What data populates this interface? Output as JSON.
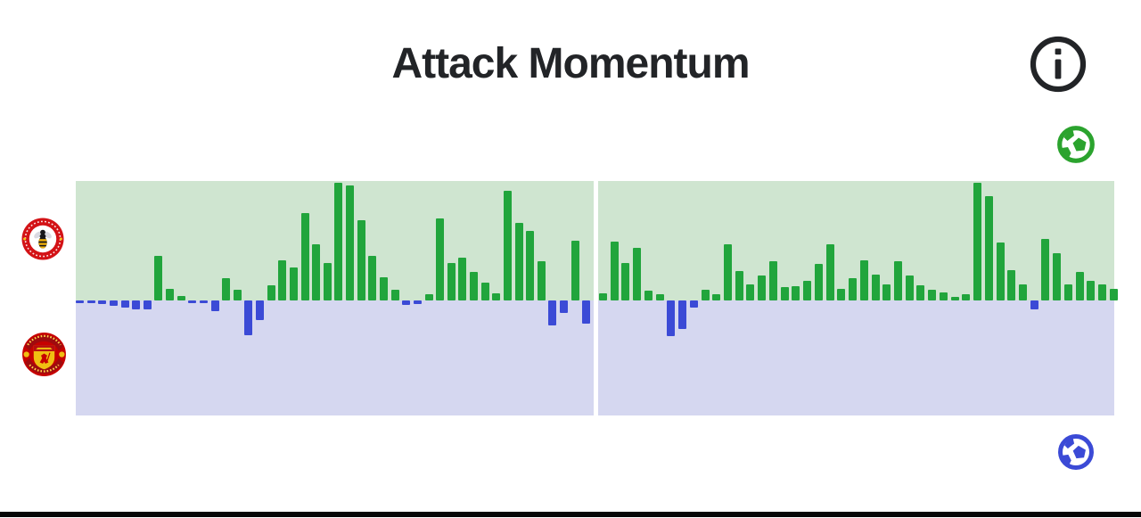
{
  "header": {
    "title": "Attack Momentum"
  },
  "info_button": {
    "icon": "info-circle-icon"
  },
  "teams": {
    "home": {
      "name": "Brentford",
      "color": "#d31216",
      "bar_color": "#21a53c",
      "side": "top"
    },
    "away": {
      "name": "Manchester United",
      "color": "#c70101",
      "bar_color": "#3b4ad6",
      "side": "bottom"
    }
  },
  "goal_markers": [
    {
      "team": "Brentford",
      "icon": "soccer-ball-icon",
      "color": "#2ba32e",
      "position": "top-right"
    },
    {
      "team": "Manchester United",
      "icon": "soccer-ball-icon",
      "color": "#3b4ad6",
      "position": "bottom-right"
    }
  ],
  "chart_data": {
    "type": "bar",
    "title": "Attack Momentum",
    "ylim": [
      -100,
      100
    ],
    "positive_side": "Brentford",
    "negative_side": "Manchester United",
    "background_positive": "#cfe5d0",
    "background_negative": "#d5d7f0",
    "bar_positive": "#21a53c",
    "bar_negative": "#3b4ad6",
    "halftime_divider": true,
    "legend_position": "none",
    "grid": false,
    "halves": [
      {
        "name": "1st half",
        "values": [
          -2,
          -2,
          -3,
          -5,
          -6,
          -8,
          -8,
          38,
          10,
          4,
          -2,
          -2,
          -9,
          19,
          9,
          -30,
          -17,
          13,
          34,
          28,
          74,
          48,
          32,
          100,
          98,
          68,
          38,
          20,
          9,
          -4,
          -3,
          5,
          70,
          32,
          36,
          24,
          15,
          6,
          93,
          66,
          59,
          33,
          -22,
          -11,
          51,
          -20
        ]
      },
      {
        "name": "2nd half",
        "values": [
          6,
          50,
          32,
          45,
          8,
          5,
          -31,
          -25,
          -6,
          9,
          5,
          48,
          25,
          14,
          21,
          33,
          11,
          12,
          17,
          31,
          48,
          10,
          19,
          34,
          22,
          14,
          33,
          21,
          13,
          9,
          7,
          3,
          5,
          100,
          89,
          49,
          26,
          14,
          -8,
          52,
          40,
          14,
          24,
          17,
          14,
          10
        ]
      }
    ]
  }
}
